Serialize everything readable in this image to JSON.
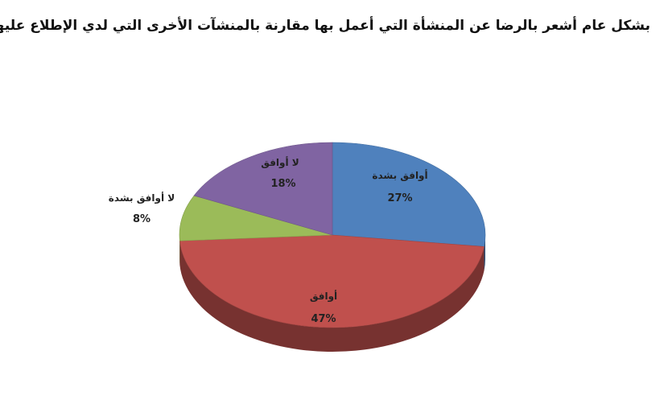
{
  "chart_data": {
    "type": "pie",
    "title": "بشكل عام أشعر بالرضا عن المنشأة التي أعمل بها مقارنة بالمنشآت الأخرى التي لدي الإطلاع عليها.",
    "slices": [
      {
        "label": "أوافق بشدة",
        "value": 27,
        "value_label": "27%",
        "color": "#4f81bd"
      },
      {
        "label": "أوافق",
        "value": 47,
        "value_label": "47%",
        "color": "#c0504d"
      },
      {
        "label": "لا أوافق بشدة",
        "value": 8,
        "value_label": "8%",
        "color": "#9bbb59"
      },
      {
        "label": "لا أوافق",
        "value": 18,
        "value_label": "18%",
        "color": "#8064a2"
      }
    ],
    "start": "top",
    "direction": "clockwise",
    "style": "3d-tilted",
    "legend": "none"
  }
}
